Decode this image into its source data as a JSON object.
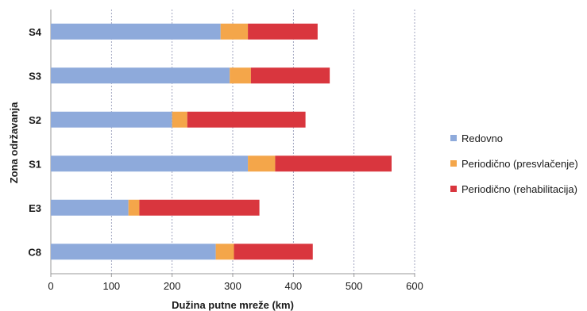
{
  "chart_data": {
    "type": "bar",
    "orientation": "horizontal",
    "stacked": true,
    "categories": [
      "S4",
      "S3",
      "S2",
      "S1",
      "E3",
      "C8"
    ],
    "series": [
      {
        "name": "Redovno",
        "color": "#8eaadb",
        "values": [
          280,
          295,
          200,
          325,
          128,
          272
        ]
      },
      {
        "name": "Periodično (presvlačenje)",
        "color": "#f4a64a",
        "values": [
          45,
          35,
          25,
          45,
          18,
          30
        ]
      },
      {
        "name": "Periodično (rehabilitacija)",
        "color": "#d9363e",
        "values": [
          115,
          130,
          195,
          192,
          198,
          130
        ]
      }
    ],
    "xlabel": "Dužina putne mreže (km)",
    "ylabel": "Zona održavanja",
    "xlim": [
      0,
      600
    ],
    "xticks": [
      "0",
      "100",
      "200",
      "300",
      "400",
      "500",
      "600"
    ],
    "grid": "vertical-dashed",
    "legend_position": "right"
  }
}
